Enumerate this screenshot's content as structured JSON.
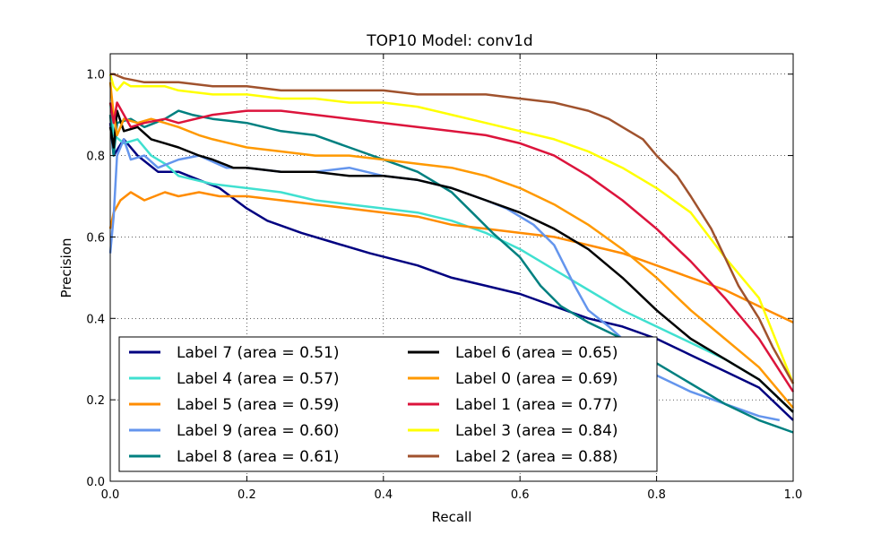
{
  "chart_data": {
    "type": "line",
    "title": "TOP10 Model: conv1d",
    "xlabel": "Recall",
    "ylabel": "Precision",
    "xlim": [
      0.0,
      1.0
    ],
    "ylim": [
      0.0,
      1.05
    ],
    "xticks": [
      "0.0",
      "0.2",
      "0.4",
      "0.6",
      "0.8",
      "1.0"
    ],
    "yticks": [
      "0.0",
      "0.2",
      "0.4",
      "0.6",
      "0.8",
      "1.0"
    ],
    "grid": true,
    "legend_position": "lower-left",
    "series": [
      {
        "name": "Label 7 (area = 0.51)",
        "color": "#000080",
        "x": [
          0.0,
          0.005,
          0.02,
          0.04,
          0.07,
          0.1,
          0.13,
          0.16,
          0.2,
          0.23,
          0.28,
          0.32,
          0.38,
          0.45,
          0.5,
          0.55,
          0.6,
          0.65,
          0.7,
          0.75,
          0.8,
          0.85,
          0.9,
          0.95,
          1.0
        ],
        "y": [
          0.88,
          0.8,
          0.84,
          0.8,
          0.76,
          0.76,
          0.74,
          0.72,
          0.67,
          0.64,
          0.61,
          0.59,
          0.56,
          0.53,
          0.5,
          0.48,
          0.46,
          0.43,
          0.4,
          0.38,
          0.35,
          0.31,
          0.27,
          0.23,
          0.15
        ]
      },
      {
        "name": "Label 4 (area = 0.57)",
        "color": "#40e0d0",
        "x": [
          0.0,
          0.005,
          0.02,
          0.04,
          0.06,
          0.08,
          0.1,
          0.15,
          0.2,
          0.25,
          0.3,
          0.35,
          0.4,
          0.45,
          0.5,
          0.55,
          0.6,
          0.65,
          0.7,
          0.75,
          0.8,
          0.85,
          0.9,
          0.95,
          1.0
        ],
        "y": [
          0.93,
          0.85,
          0.83,
          0.84,
          0.8,
          0.78,
          0.75,
          0.73,
          0.72,
          0.71,
          0.69,
          0.68,
          0.67,
          0.66,
          0.64,
          0.61,
          0.57,
          0.52,
          0.47,
          0.42,
          0.38,
          0.34,
          0.3,
          0.25,
          0.17
        ]
      },
      {
        "name": "Label 5 (area = 0.59)",
        "color": "#ff8c00",
        "x": [
          0.0,
          0.005,
          0.015,
          0.03,
          0.05,
          0.08,
          0.1,
          0.13,
          0.16,
          0.2,
          0.25,
          0.3,
          0.35,
          0.4,
          0.45,
          0.5,
          0.55,
          0.6,
          0.65,
          0.7,
          0.75,
          0.8,
          0.85,
          0.9,
          0.95,
          1.0
        ],
        "y": [
          0.62,
          0.66,
          0.69,
          0.71,
          0.69,
          0.71,
          0.7,
          0.71,
          0.7,
          0.7,
          0.69,
          0.68,
          0.67,
          0.66,
          0.65,
          0.63,
          0.62,
          0.61,
          0.6,
          0.58,
          0.56,
          0.53,
          0.5,
          0.47,
          0.43,
          0.39
        ]
      },
      {
        "name": "Label 9 (area = 0.60)",
        "color": "#6495ed",
        "x": [
          0.0,
          0.005,
          0.01,
          0.02,
          0.03,
          0.05,
          0.07,
          0.1,
          0.13,
          0.17,
          0.2,
          0.25,
          0.3,
          0.35,
          0.4,
          0.45,
          0.5,
          0.55,
          0.58,
          0.62,
          0.65,
          0.68,
          0.7,
          0.73,
          0.75,
          0.78,
          0.8,
          0.85,
          0.9,
          0.95,
          0.98
        ],
        "y": [
          0.56,
          0.65,
          0.8,
          0.84,
          0.79,
          0.8,
          0.77,
          0.79,
          0.8,
          0.77,
          0.77,
          0.76,
          0.76,
          0.77,
          0.75,
          0.74,
          0.72,
          0.69,
          0.67,
          0.63,
          0.58,
          0.48,
          0.42,
          0.38,
          0.35,
          0.32,
          0.26,
          0.22,
          0.19,
          0.16,
          0.15
        ]
      },
      {
        "name": "Label 8 (area = 0.61)",
        "color": "#008080",
        "x": [
          0.0,
          0.005,
          0.01,
          0.03,
          0.05,
          0.08,
          0.1,
          0.12,
          0.15,
          0.2,
          0.25,
          0.3,
          0.35,
          0.4,
          0.45,
          0.5,
          0.53,
          0.56,
          0.6,
          0.63,
          0.66,
          0.7,
          0.75,
          0.8,
          0.85,
          0.9,
          0.95,
          1.0
        ],
        "y": [
          0.9,
          0.8,
          0.88,
          0.89,
          0.87,
          0.89,
          0.91,
          0.9,
          0.89,
          0.88,
          0.86,
          0.85,
          0.82,
          0.79,
          0.76,
          0.71,
          0.66,
          0.61,
          0.55,
          0.48,
          0.43,
          0.39,
          0.35,
          0.29,
          0.24,
          0.19,
          0.15,
          0.12
        ]
      },
      {
        "name": "Label 6 (area = 0.65)",
        "color": "#000000",
        "x": [
          0.0,
          0.005,
          0.01,
          0.02,
          0.04,
          0.06,
          0.08,
          0.1,
          0.13,
          0.15,
          0.18,
          0.2,
          0.25,
          0.3,
          0.35,
          0.4,
          0.45,
          0.5,
          0.55,
          0.6,
          0.65,
          0.7,
          0.75,
          0.8,
          0.85,
          0.9,
          0.95,
          1.0
        ],
        "y": [
          0.87,
          0.82,
          0.91,
          0.86,
          0.87,
          0.84,
          0.83,
          0.82,
          0.8,
          0.79,
          0.77,
          0.77,
          0.76,
          0.76,
          0.75,
          0.75,
          0.74,
          0.72,
          0.69,
          0.66,
          0.62,
          0.57,
          0.5,
          0.42,
          0.35,
          0.3,
          0.25,
          0.17
        ]
      },
      {
        "name": "Label 0 (area = 0.69)",
        "color": "#ff9900",
        "x": [
          0.0,
          0.005,
          0.01,
          0.02,
          0.04,
          0.06,
          0.08,
          0.1,
          0.13,
          0.15,
          0.2,
          0.25,
          0.3,
          0.35,
          0.4,
          0.45,
          0.5,
          0.55,
          0.6,
          0.65,
          0.7,
          0.75,
          0.8,
          0.85,
          0.9,
          0.95,
          1.0
        ],
        "y": [
          0.98,
          0.9,
          0.85,
          0.89,
          0.88,
          0.89,
          0.88,
          0.87,
          0.85,
          0.84,
          0.82,
          0.81,
          0.8,
          0.8,
          0.79,
          0.78,
          0.77,
          0.75,
          0.72,
          0.68,
          0.63,
          0.57,
          0.5,
          0.42,
          0.35,
          0.28,
          0.18
        ]
      },
      {
        "name": "Label 1 (area = 0.77)",
        "color": "#dc143c",
        "x": [
          0.0,
          0.005,
          0.01,
          0.03,
          0.05,
          0.08,
          0.1,
          0.15,
          0.2,
          0.25,
          0.3,
          0.35,
          0.4,
          0.45,
          0.5,
          0.55,
          0.6,
          0.65,
          0.7,
          0.75,
          0.8,
          0.85,
          0.9,
          0.95,
          1.0
        ],
        "y": [
          0.93,
          0.88,
          0.93,
          0.87,
          0.88,
          0.89,
          0.88,
          0.9,
          0.91,
          0.91,
          0.9,
          0.89,
          0.88,
          0.87,
          0.86,
          0.85,
          0.83,
          0.8,
          0.75,
          0.69,
          0.62,
          0.54,
          0.45,
          0.35,
          0.22
        ]
      },
      {
        "name": "Label 3 (area = 0.84)",
        "color": "#ffff00",
        "x": [
          0.0,
          0.005,
          0.01,
          0.02,
          0.03,
          0.05,
          0.08,
          0.1,
          0.15,
          0.2,
          0.25,
          0.3,
          0.35,
          0.4,
          0.45,
          0.5,
          0.55,
          0.6,
          0.65,
          0.7,
          0.75,
          0.8,
          0.85,
          0.9,
          0.95,
          1.0
        ],
        "y": [
          1.0,
          0.97,
          0.96,
          0.98,
          0.97,
          0.97,
          0.97,
          0.96,
          0.95,
          0.95,
          0.94,
          0.94,
          0.93,
          0.93,
          0.92,
          0.9,
          0.88,
          0.86,
          0.84,
          0.81,
          0.77,
          0.72,
          0.66,
          0.55,
          0.45,
          0.24
        ]
      },
      {
        "name": "Label 2 (area = 0.88)",
        "color": "#a0522d",
        "x": [
          0.0,
          0.005,
          0.02,
          0.05,
          0.08,
          0.1,
          0.15,
          0.2,
          0.25,
          0.3,
          0.35,
          0.4,
          0.45,
          0.5,
          0.55,
          0.6,
          0.65,
          0.7,
          0.73,
          0.75,
          0.78,
          0.8,
          0.83,
          0.85,
          0.88,
          0.9,
          0.92,
          0.95,
          0.97,
          1.0
        ],
        "y": [
          1.0,
          1.0,
          0.99,
          0.98,
          0.98,
          0.98,
          0.97,
          0.97,
          0.96,
          0.96,
          0.96,
          0.96,
          0.95,
          0.95,
          0.95,
          0.94,
          0.93,
          0.91,
          0.89,
          0.87,
          0.84,
          0.8,
          0.75,
          0.7,
          0.62,
          0.55,
          0.48,
          0.4,
          0.33,
          0.24
        ]
      }
    ]
  }
}
